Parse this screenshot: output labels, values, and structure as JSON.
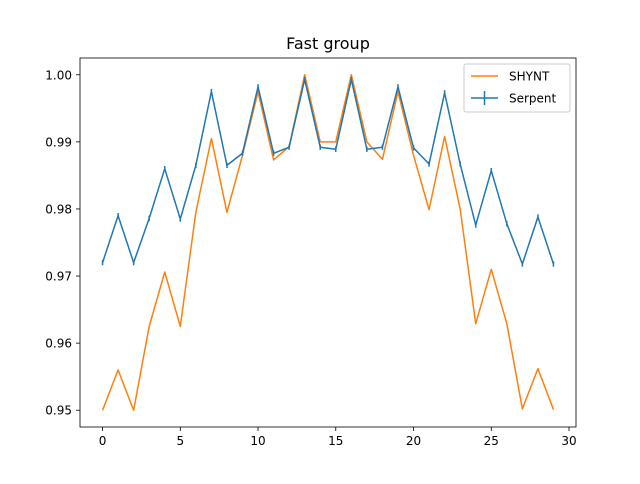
{
  "chart_data": {
    "type": "line",
    "title": "Fast group",
    "xlabel": "",
    "ylabel": "",
    "xlim": [
      -1.45,
      30.45
    ],
    "ylim": [
      0.9475,
      1.0025
    ],
    "xticks": [
      0,
      5,
      10,
      15,
      20,
      25,
      30
    ],
    "yticks": [
      0.95,
      0.96,
      0.97,
      0.98,
      0.99,
      1.0
    ],
    "xtick_labels": [
      "0",
      "5",
      "10",
      "15",
      "20",
      "25",
      "30"
    ],
    "ytick_labels": [
      "0.95",
      "0.96",
      "0.97",
      "0.98",
      "0.99",
      "1.00"
    ],
    "grid": false,
    "legend_position": "top-right",
    "x": [
      0,
      1,
      2,
      3,
      4,
      5,
      6,
      7,
      8,
      9,
      10,
      11,
      12,
      13,
      14,
      15,
      16,
      17,
      18,
      19,
      20,
      21,
      22,
      23,
      24,
      25,
      26,
      27,
      28,
      29
    ],
    "series": [
      {
        "name": "SHYNT",
        "color": "#ff7f0e",
        "marker": "line",
        "values": [
          0.95,
          0.956,
          0.95,
          0.9625,
          0.9706,
          0.9625,
          0.9795,
          0.9905,
          0.9795,
          0.988,
          0.9975,
          0.9873,
          0.9893,
          1.0,
          0.99,
          0.99,
          1.0,
          0.99,
          0.9874,
          0.9975,
          0.988,
          0.9799,
          0.9908,
          0.98,
          0.9629,
          0.971,
          0.9629,
          0.9502,
          0.9562,
          0.9501
        ]
      },
      {
        "name": "Serpent",
        "color": "#1f77b4",
        "marker": "errorbar",
        "values": [
          0.972,
          0.979,
          0.972,
          0.9786,
          0.986,
          0.9785,
          0.9865,
          0.9975,
          0.9865,
          0.9883,
          0.9982,
          0.9883,
          0.9892,
          0.9993,
          0.9892,
          0.9889,
          0.9993,
          0.9889,
          0.9892,
          0.9982,
          0.9891,
          0.9867,
          0.9973,
          0.9867,
          0.9776,
          0.9857,
          0.9778,
          0.9718,
          0.9788,
          0.9718
        ],
        "errors": [
          0.0004,
          0.0004,
          0.0004,
          0.0004,
          0.0004,
          0.0004,
          0.0004,
          0.0004,
          0.0004,
          0.0004,
          0.0004,
          0.0004,
          0.0004,
          0.0004,
          0.0004,
          0.0004,
          0.0004,
          0.0004,
          0.0004,
          0.0004,
          0.0004,
          0.0004,
          0.0004,
          0.0004,
          0.0004,
          0.0004,
          0.0004,
          0.0004,
          0.0004,
          0.0004
        ]
      }
    ]
  }
}
